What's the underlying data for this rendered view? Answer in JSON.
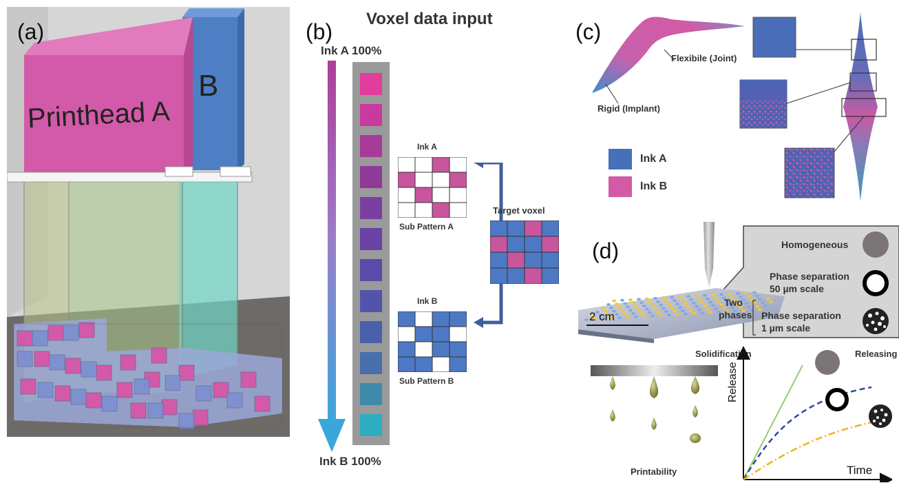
{
  "panel_a": {
    "letter": "(a)",
    "printhead_a": "Printhead A",
    "printhead_b": "B"
  },
  "panel_b": {
    "letter": "(b)",
    "title": "Voxel data input",
    "top_label": "Ink A 100%",
    "bottom_label": "Ink B 100%",
    "ink_a_label": "Ink A",
    "sub_pattern_a": "Sub Pattern A",
    "ink_b_label": "Ink B",
    "sub_pattern_b": "Sub Pattern B",
    "target_voxel": "Target voxel",
    "gradient_colors": [
      "#e13d9c",
      "#c83a9d",
      "#a83a9a",
      "#8f3a99",
      "#7a3ea0",
      "#6a42a6",
      "#5b4aa9",
      "#5254ac",
      "#4a60ac",
      "#466fac",
      "#3f8aab",
      "#2eaec0"
    ]
  },
  "panel_c": {
    "letter": "(c)",
    "flexible": "Flexibile (Joint)",
    "rigid": "Rigid (Implant)",
    "legend_a": "Ink A",
    "legend_b": "Ink B",
    "color_a": "#4670b8",
    "color_b": "#d35aa4"
  },
  "panel_d": {
    "letter": "(d)",
    "homogeneous": "Homogeneous",
    "phase_sep_50_line1": "Phase separation",
    "phase_sep_50_line2": "50 µm scale",
    "phase_sep_1_line1": "Phase separation",
    "phase_sep_1_line2": "1 µm scale",
    "two_phases_line1": "Two",
    "two_phases_line2": "phases",
    "scale_bar": "2 cm",
    "solidification": "Solidification",
    "releasing": "Releasing",
    "printability": "Printability",
    "y_axis": "Release",
    "x_axis": "Time"
  }
}
